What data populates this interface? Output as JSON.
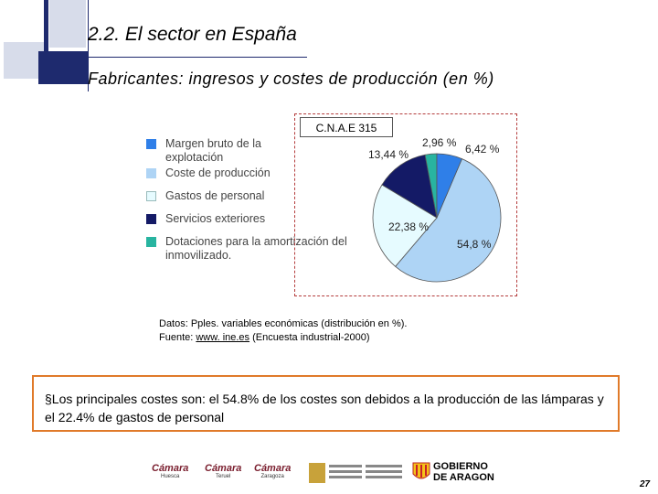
{
  "header": {
    "title": "2.2. El sector en España",
    "subtitle": "Fabricantes: ingresos y costes de producción (en %)"
  },
  "chart_data": {
    "type": "pie",
    "title": "C.N.A.E 315",
    "categories": [
      "Coste de producción",
      "Gastos de personal",
      "Servicios exteriores",
      "Dotaciones para la amortización del inmovilizado",
      "Margen bruto de la explotación"
    ],
    "values": [
      54.8,
      22.38,
      13.44,
      2.96,
      6.42
    ],
    "data_labels": [
      "54,8 %",
      "22,38 %",
      "13,44 %",
      "2,96 %",
      "6,42 %"
    ],
    "colors": [
      "#aed4f5",
      "#e6fbff",
      "#141a66",
      "#28b4a0",
      "#2f7fe8"
    ],
    "legend": {
      "placement": "left",
      "entries": [
        {
          "label": "Margen bruto de la explotación",
          "color": "#2f7fe8"
        },
        {
          "label": "Coste de producción",
          "color": "#aed4f5"
        },
        {
          "label": "Gastos de personal",
          "color": "#e6fbff"
        },
        {
          "label": "Servicios exteriores",
          "color": "#141a66"
        },
        {
          "label": "Dotaciones para la amortización del inmovilizado.",
          "color": "#28b4a0"
        }
      ]
    }
  },
  "notes": {
    "line1": "Datos: Pples. variables económicas (distribución en %).",
    "line2_prefix": "Fuente: ",
    "line2_link": "www. ine.es",
    "line2_suffix": " (Encuesta industrial-2000)"
  },
  "conclusion": {
    "bullet": "§",
    "text": "Los principales costes son: el 54.8% de los costes son debidos a la producción de las lámparas y el 22.4% de gastos de personal"
  },
  "footer": {
    "logos": [
      "Cámara Huesca",
      "Cámara Teruel",
      "Cámara Zaragoza",
      "Ministerio de Ciencia y Tecnología",
      "Gobierno de Aragón"
    ],
    "logo_text_camara": "Cámara",
    "logo_sub_huesca": "Huesca",
    "logo_sub_teruel": "Teruel",
    "logo_sub_zaragoza": "Zaragoza",
    "logo_text_gobierno1": "GOBIERNO",
    "logo_text_gobierno2": "DE ARAGON",
    "page_number": "27"
  }
}
